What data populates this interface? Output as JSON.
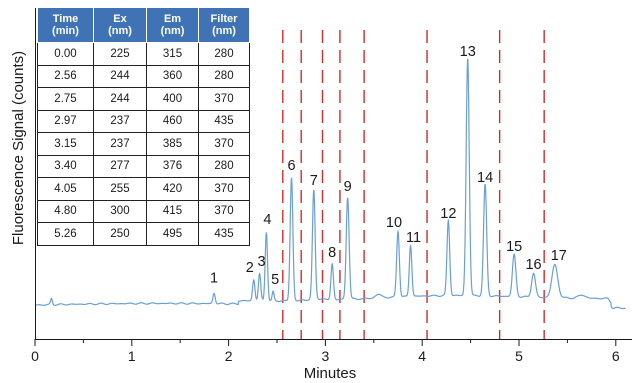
{
  "chart_data": {
    "type": "line",
    "xlabel": "Minutes",
    "ylabel": "Fluorescence Signal (counts)",
    "xlim": [
      0,
      6.1
    ],
    "xticks": [
      0,
      1,
      2,
      3,
      4,
      5,
      6
    ],
    "y_ticks_shown": false,
    "legend": "none",
    "trace_color": "#6a9fd4",
    "marker_color": "#d42a2a",
    "baseline_level": 0.0,
    "program_change_times": [
      2.56,
      2.75,
      2.97,
      3.15,
      3.4,
      4.05,
      4.8,
      5.26
    ],
    "peaks": [
      {
        "label": "1",
        "time": 1.85,
        "height": 0.035
      },
      {
        "label": "2",
        "time": 2.26,
        "height": 0.07
      },
      {
        "label": "3",
        "time": 2.32,
        "height": 0.09
      },
      {
        "label": "4",
        "time": 2.39,
        "height": 0.23
      },
      {
        "label": "5",
        "time": 2.46,
        "height": 0.03
      },
      {
        "label": "6",
        "time": 2.65,
        "height": 0.41
      },
      {
        "label": "7",
        "time": 2.88,
        "height": 0.36
      },
      {
        "label": "8",
        "time": 3.07,
        "height": 0.12
      },
      {
        "label": "9",
        "time": 3.23,
        "height": 0.34
      },
      {
        "label": "10",
        "time": 3.75,
        "height": 0.22
      },
      {
        "label": "11",
        "time": 3.88,
        "height": 0.17
      },
      {
        "label": "12",
        "time": 4.27,
        "height": 0.25
      },
      {
        "label": "13",
        "time": 4.47,
        "height": 0.79
      },
      {
        "label": "14",
        "time": 4.65,
        "height": 0.37
      },
      {
        "label": "15",
        "time": 4.95,
        "height": 0.14
      },
      {
        "label": "16",
        "time": 5.15,
        "height": 0.08
      },
      {
        "label": "17",
        "time": 5.37,
        "height": 0.11
      }
    ],
    "table": {
      "headers": [
        [
          "Time",
          "(min)"
        ],
        [
          "Ex",
          "(nm)"
        ],
        [
          "Em",
          "(nm)"
        ],
        [
          "Filter",
          "(nm)"
        ]
      ],
      "rows": [
        [
          "0.00",
          "225",
          "315",
          "280"
        ],
        [
          "2.56",
          "244",
          "360",
          "280"
        ],
        [
          "2.75",
          "244",
          "400",
          "370"
        ],
        [
          "2.97",
          "237",
          "460",
          "435"
        ],
        [
          "3.15",
          "237",
          "385",
          "370"
        ],
        [
          "3.40",
          "277",
          "376",
          "280"
        ],
        [
          "4.05",
          "255",
          "420",
          "370"
        ],
        [
          "4.80",
          "300",
          "415",
          "370"
        ],
        [
          "5.26",
          "250",
          "495",
          "435"
        ]
      ]
    }
  }
}
